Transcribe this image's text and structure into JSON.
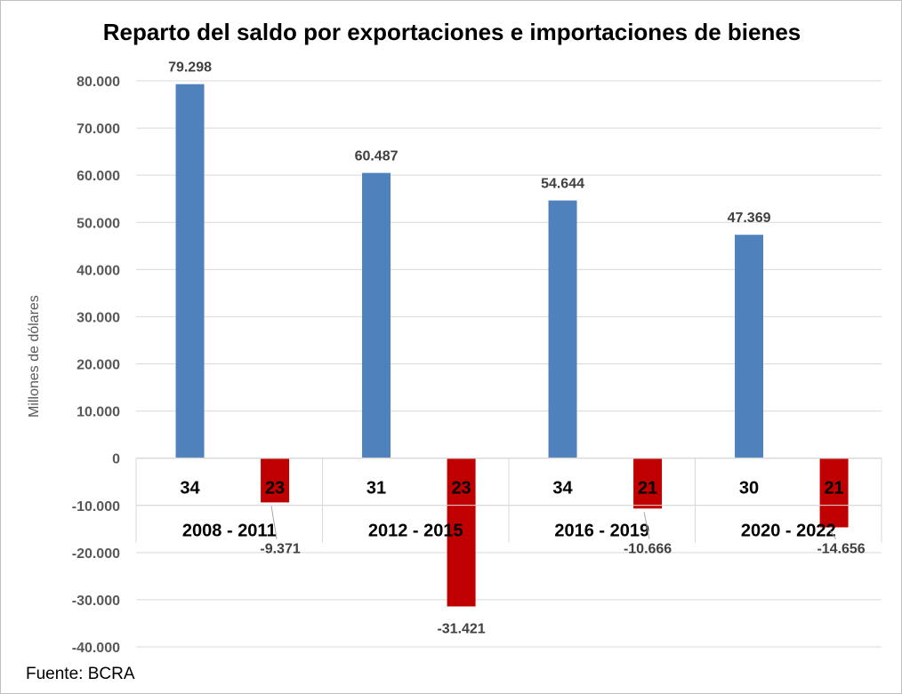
{
  "chart_data": {
    "type": "bar",
    "title": "Reparto del saldo por exportaciones e importaciones de bienes",
    "ylabel": "Millones de dólares",
    "xlabel": "",
    "ylim": [
      -40000,
      80000
    ],
    "ytick_step": 10000,
    "ytick_labels": [
      "80.000",
      "70.000",
      "60.000",
      "50.000",
      "40.000",
      "30.000",
      "20.000",
      "10.000",
      "0",
      "-10.000",
      "-20.000",
      "-30.000",
      "-40.000"
    ],
    "grid": true,
    "legend": "none",
    "categories": [
      "2008 - 2011",
      "2012 - 2015",
      "2016 - 2019",
      "2020 - 2022"
    ],
    "bars": [
      {
        "group": 0,
        "sub_label": "34",
        "value": 79298,
        "label": "79.298",
        "color": "#4f81bd"
      },
      {
        "group": 0,
        "sub_label": "23",
        "value": -9371,
        "label": "-9.371",
        "color": "#c00000"
      },
      {
        "group": 1,
        "sub_label": "31",
        "value": 60487,
        "label": "60.487",
        "color": "#4f81bd"
      },
      {
        "group": 1,
        "sub_label": "23",
        "value": -31421,
        "label": "-31.421",
        "color": "#c00000"
      },
      {
        "group": 2,
        "sub_label": "34",
        "value": 54644,
        "label": "54.644",
        "color": "#4f81bd"
      },
      {
        "group": 2,
        "sub_label": "21",
        "value": -10666,
        "label": "-10.666",
        "color": "#c00000"
      },
      {
        "group": 3,
        "sub_label": "30",
        "value": 47369,
        "label": "47.369",
        "color": "#4f81bd"
      },
      {
        "group": 3,
        "sub_label": "21",
        "value": -14656,
        "label": "-14.656",
        "color": "#c00000"
      }
    ]
  },
  "footer": {
    "source": "Fuente: BCRA"
  }
}
